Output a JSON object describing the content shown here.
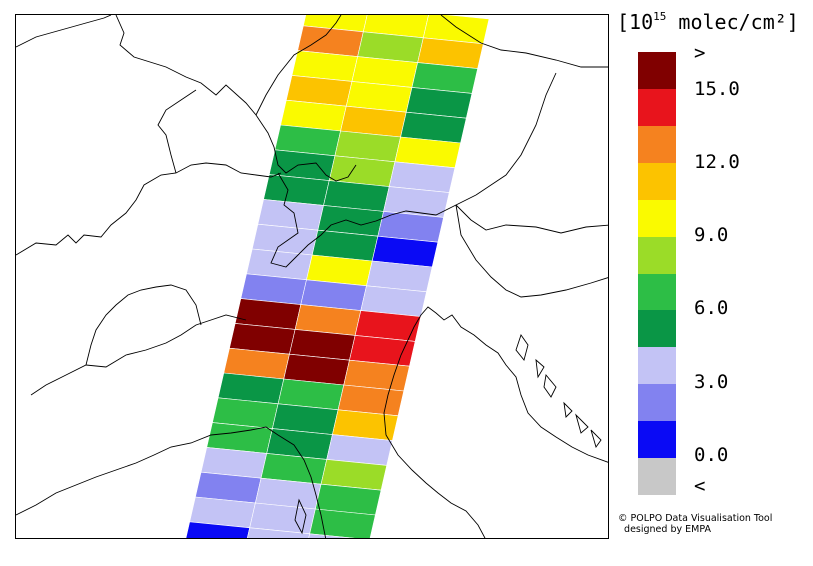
{
  "legend": {
    "unit_prefix": "[10",
    "unit_exponent": "15",
    "unit_suffix": " molec/cm²]",
    "colors": [
      "#800000",
      "#e8141c",
      "#f5821f",
      "#fcc300",
      "#fafa00",
      "#9bdc28",
      "#2dbe46",
      "#0a9646",
      "#c3c3f5",
      "#8282f0",
      "#0a0af5",
      "#c8c8c8"
    ],
    "labels": [
      ">",
      "15.0",
      "12.0",
      "9.0",
      "6.0",
      "3.0",
      "0.0",
      "<"
    ]
  },
  "credit": {
    "line1": "© POLPO Data Visualisation Tool",
    "line2": "  designed by EMPA"
  },
  "map": {
    "swath_rows": [
      [
        "yellow",
        "yellow",
        "yellow"
      ],
      [
        "orange",
        "lgreen",
        "gold"
      ],
      [
        "yellow",
        "yellow",
        "green"
      ],
      [
        "gold",
        "yellow",
        "dgreen"
      ],
      [
        "yellow",
        "gold",
        "dgreen"
      ],
      [
        "green",
        "lgreen",
        "yellow"
      ],
      [
        "dgreen",
        "lgreen",
        "lavender"
      ],
      [
        "dgreen",
        "dgreen",
        "lavender"
      ],
      [
        "lavender",
        "dgreen",
        "periwinkle"
      ],
      [
        "lavender",
        "dgreen",
        "blue"
      ],
      [
        "lavender",
        "yellow",
        "lavender"
      ],
      [
        "periwinkle",
        "periwinkle",
        "lavender"
      ],
      [
        "darkred",
        "orange",
        "red"
      ],
      [
        "darkred",
        "darkred",
        "red"
      ],
      [
        "orange",
        "darkred",
        "orange"
      ],
      [
        "dgreen",
        "green",
        "orange"
      ],
      [
        "green",
        "dgreen",
        "gold"
      ],
      [
        "green",
        "dgreen",
        "lavender"
      ],
      [
        "lavender",
        "green",
        "lgreen"
      ],
      [
        "periwinkle",
        "lavender",
        "green"
      ],
      [
        "lavender",
        "lavender",
        "green"
      ],
      [
        "blue",
        "lavender",
        "lavender"
      ]
    ],
    "palette": {
      "darkred": "#800000",
      "red": "#e8141c",
      "orange": "#f5821f",
      "gold": "#fcc300",
      "yellow": "#fafa00",
      "lgreen": "#9bdc28",
      "green": "#2dbe46",
      "dgreen": "#0a9646",
      "lavender": "#c3c3f5",
      "periwinkle": "#8282f0",
      "blue": "#0a0af5"
    }
  }
}
